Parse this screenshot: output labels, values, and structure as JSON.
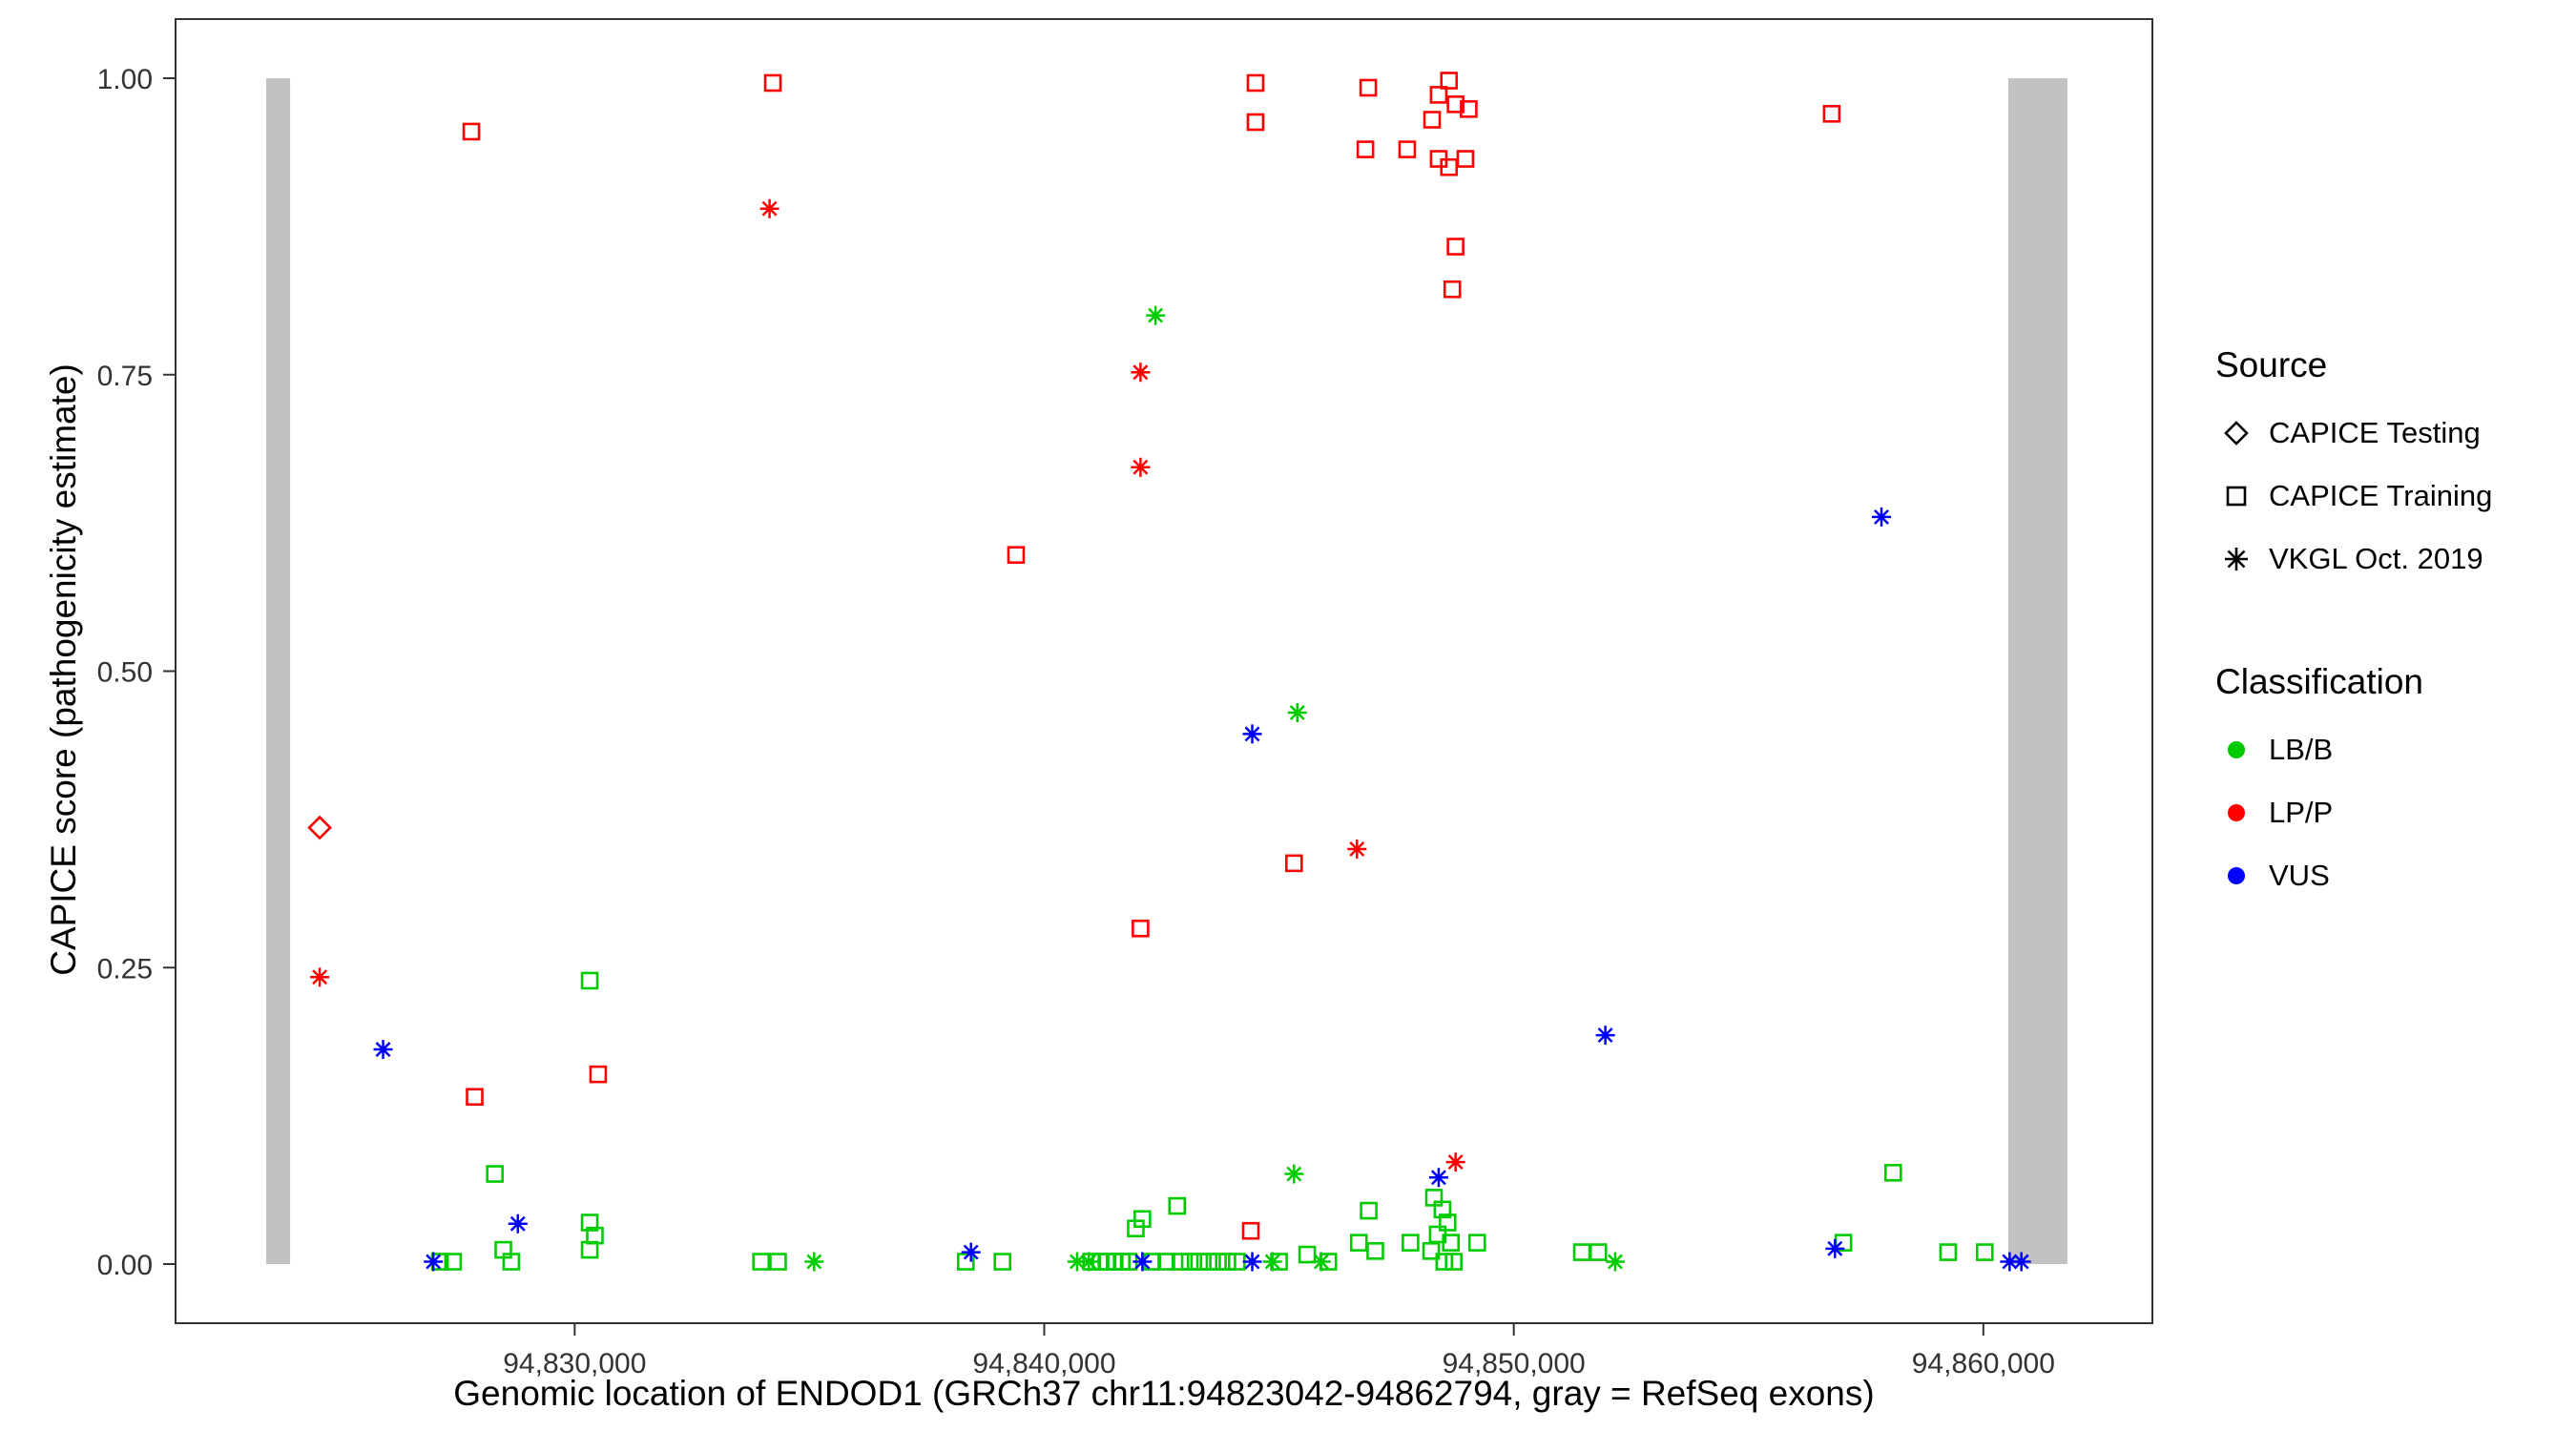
{
  "chart_data": {
    "type": "scatter",
    "title": "",
    "xlabel": "Genomic location of ENDOD1 (GRCh37 chr11:94823042-94862794, gray = RefSeq exons)",
    "ylabel": "CAPICE score (pathogenicity estimate)",
    "xlim": [
      94821500,
      94863600
    ],
    "ylim": [
      0,
      1
    ],
    "grid": false,
    "x_ticks": [
      {
        "value": 94830000,
        "label": "94,830,000"
      },
      {
        "value": 94840000,
        "label": "94,840,000"
      },
      {
        "value": 94850000,
        "label": "94,850,000"
      },
      {
        "value": 94860000,
        "label": "94,860,000"
      }
    ],
    "y_ticks": [
      {
        "value": 0.0,
        "label": "0.00"
      },
      {
        "value": 0.25,
        "label": "0.25"
      },
      {
        "value": 0.5,
        "label": "0.50"
      },
      {
        "value": 0.75,
        "label": "0.75"
      },
      {
        "value": 1.0,
        "label": "1.00"
      }
    ],
    "exon_color": "#c2c2c2",
    "exons": [
      {
        "start": 94823430,
        "end": 94823940
      },
      {
        "start": 94860530,
        "end": 94861790
      }
    ],
    "colors": {
      "LB/B": "#00cc00",
      "LP/P": "#ff0000",
      "VUS": "#0000ff"
    },
    "points_format": [
      "x",
      "y",
      "source",
      "cls"
    ],
    "points": [
      [
        94827800,
        0.955,
        "training",
        "LP/P"
      ],
      [
        94834220,
        0.996,
        "training",
        "LP/P"
      ],
      [
        94844500,
        0.996,
        "training",
        "LP/P"
      ],
      [
        94844500,
        0.963,
        "training",
        "LP/P"
      ],
      [
        94846900,
        0.992,
        "training",
        "LP/P"
      ],
      [
        94846840,
        0.94,
        "training",
        "LP/P"
      ],
      [
        94847730,
        0.94,
        "training",
        "LP/P"
      ],
      [
        94848260,
        0.965,
        "training",
        "LP/P"
      ],
      [
        94848400,
        0.986,
        "training",
        "LP/P"
      ],
      [
        94848620,
        0.998,
        "training",
        "LP/P"
      ],
      [
        94848760,
        0.978,
        "training",
        "LP/P"
      ],
      [
        94848400,
        0.932,
        "training",
        "LP/P"
      ],
      [
        94848620,
        0.925,
        "training",
        "LP/P"
      ],
      [
        94849040,
        0.974,
        "training",
        "LP/P"
      ],
      [
        94848970,
        0.932,
        "training",
        "LP/P"
      ],
      [
        94848760,
        0.858,
        "training",
        "LP/P"
      ],
      [
        94848690,
        0.822,
        "training",
        "LP/P"
      ],
      [
        94856770,
        0.97,
        "training",
        "LP/P"
      ],
      [
        94839400,
        0.598,
        "training",
        "LP/P"
      ],
      [
        94842050,
        0.283,
        "training",
        "LP/P"
      ],
      [
        94845320,
        0.338,
        "training",
        "LP/P"
      ],
      [
        94827870,
        0.141,
        "training",
        "LP/P"
      ],
      [
        94830500,
        0.16,
        "training",
        "LP/P"
      ],
      [
        94844400,
        0.028,
        "training",
        "LP/P"
      ],
      [
        94834150,
        0.89,
        "vkgl",
        "LP/P"
      ],
      [
        94842050,
        0.752,
        "vkgl",
        "LP/P"
      ],
      [
        94842050,
        0.672,
        "vkgl",
        "LP/P"
      ],
      [
        94846660,
        0.35,
        "vkgl",
        "LP/P"
      ],
      [
        94848760,
        0.086,
        "vkgl",
        "LP/P"
      ],
      [
        94824570,
        0.242,
        "vkgl",
        "LP/P"
      ],
      [
        94824570,
        0.368,
        "testing",
        "LP/P"
      ],
      [
        94842370,
        0.8,
        "vkgl",
        "LB/B"
      ],
      [
        94845390,
        0.465,
        "vkgl",
        "LB/B"
      ],
      [
        94845320,
        0.076,
        "vkgl",
        "LB/B"
      ],
      [
        94835100,
        0.002,
        "vkgl",
        "LB/B"
      ],
      [
        94840700,
        0.002,
        "vkgl",
        "LB/B"
      ],
      [
        94840950,
        0.002,
        "vkgl",
        "LB/B"
      ],
      [
        94844860,
        0.002,
        "vkgl",
        "LB/B"
      ],
      [
        94845900,
        0.002,
        "vkgl",
        "LB/B"
      ],
      [
        94852160,
        0.002,
        "vkgl",
        "LB/B"
      ],
      [
        94828300,
        0.076,
        "training",
        "LB/B"
      ],
      [
        94830320,
        0.239,
        "training",
        "LB/B"
      ],
      [
        94830320,
        0.035,
        "training",
        "LB/B"
      ],
      [
        94830430,
        0.024,
        "training",
        "LB/B"
      ],
      [
        94830320,
        0.012,
        "training",
        "LB/B"
      ],
      [
        94828480,
        0.012,
        "training",
        "LB/B"
      ],
      [
        94827130,
        0.002,
        "training",
        "LB/B"
      ],
      [
        94827410,
        0.002,
        "training",
        "LB/B"
      ],
      [
        94828650,
        0.002,
        "training",
        "LB/B"
      ],
      [
        94833970,
        0.002,
        "training",
        "LB/B"
      ],
      [
        94834330,
        0.002,
        "training",
        "LB/B"
      ],
      [
        94838330,
        0.002,
        "training",
        "LB/B"
      ],
      [
        94839110,
        0.002,
        "training",
        "LB/B"
      ],
      [
        94841000,
        0.002,
        "training",
        "LB/B"
      ],
      [
        94841200,
        0.002,
        "training",
        "LB/B"
      ],
      [
        94841350,
        0.002,
        "training",
        "LB/B"
      ],
      [
        94841500,
        0.002,
        "training",
        "LB/B"
      ],
      [
        94841650,
        0.002,
        "training",
        "LB/B"
      ],
      [
        94841800,
        0.002,
        "training",
        "LB/B"
      ],
      [
        94842090,
        0.038,
        "training",
        "LB/B"
      ],
      [
        94841950,
        0.03,
        "training",
        "LB/B"
      ],
      [
        94842830,
        0.049,
        "training",
        "LB/B"
      ],
      [
        94842300,
        0.002,
        "training",
        "LB/B"
      ],
      [
        94842600,
        0.002,
        "training",
        "LB/B"
      ],
      [
        94842900,
        0.002,
        "training",
        "LB/B"
      ],
      [
        94843100,
        0.002,
        "training",
        "LB/B"
      ],
      [
        94843300,
        0.002,
        "training",
        "LB/B"
      ],
      [
        94843500,
        0.002,
        "training",
        "LB/B"
      ],
      [
        94843700,
        0.002,
        "training",
        "LB/B"
      ],
      [
        94843900,
        0.002,
        "training",
        "LB/B"
      ],
      [
        94844100,
        0.002,
        "training",
        "LB/B"
      ],
      [
        94845000,
        0.002,
        "training",
        "LB/B"
      ],
      [
        94845600,
        0.008,
        "training",
        "LB/B"
      ],
      [
        94846050,
        0.002,
        "training",
        "LB/B"
      ],
      [
        94846910,
        0.045,
        "training",
        "LB/B"
      ],
      [
        94846700,
        0.018,
        "training",
        "LB/B"
      ],
      [
        94847050,
        0.011,
        "training",
        "LB/B"
      ],
      [
        94847800,
        0.018,
        "training",
        "LB/B"
      ],
      [
        94848300,
        0.056,
        "training",
        "LB/B"
      ],
      [
        94848480,
        0.046,
        "training",
        "LB/B"
      ],
      [
        94848590,
        0.035,
        "training",
        "LB/B"
      ],
      [
        94848380,
        0.025,
        "training",
        "LB/B"
      ],
      [
        94848660,
        0.018,
        "training",
        "LB/B"
      ],
      [
        94848240,
        0.011,
        "training",
        "LB/B"
      ],
      [
        94848520,
        0.002,
        "training",
        "LB/B"
      ],
      [
        94848720,
        0.002,
        "training",
        "LB/B"
      ],
      [
        94849220,
        0.018,
        "training",
        "LB/B"
      ],
      [
        94851450,
        0.01,
        "training",
        "LB/B"
      ],
      [
        94851800,
        0.01,
        "training",
        "LB/B"
      ],
      [
        94857020,
        0.018,
        "training",
        "LB/B"
      ],
      [
        94858080,
        0.077,
        "training",
        "LB/B"
      ],
      [
        94859250,
        0.01,
        "training",
        "LB/B"
      ],
      [
        94860030,
        0.01,
        "training",
        "LB/B"
      ],
      [
        94857830,
        0.63,
        "vkgl",
        "VUS"
      ],
      [
        94844430,
        0.447,
        "vkgl",
        "VUS"
      ],
      [
        94851950,
        0.193,
        "vkgl",
        "VUS"
      ],
      [
        94848400,
        0.073,
        "vkgl",
        "VUS"
      ],
      [
        94825920,
        0.181,
        "vkgl",
        "VUS"
      ],
      [
        94828790,
        0.034,
        "vkgl",
        "VUS"
      ],
      [
        94826990,
        0.002,
        "vkgl",
        "VUS"
      ],
      [
        94838440,
        0.01,
        "vkgl",
        "VUS"
      ],
      [
        94842090,
        0.002,
        "vkgl",
        "VUS"
      ],
      [
        94844430,
        0.002,
        "vkgl",
        "VUS"
      ],
      [
        94856840,
        0.013,
        "vkgl",
        "VUS"
      ],
      [
        94860560,
        0.002,
        "vkgl",
        "VUS"
      ],
      [
        94860810,
        0.002,
        "vkgl",
        "VUS"
      ]
    ]
  },
  "legend": {
    "source_title": "Source",
    "source_items": [
      {
        "label": "CAPICE Testing",
        "shape": "diamond"
      },
      {
        "label": "CAPICE Training",
        "shape": "square"
      },
      {
        "label": "VKGL Oct. 2019",
        "shape": "asterisk"
      }
    ],
    "class_title": "Classification",
    "class_items": [
      {
        "label": "LB/B",
        "color": "#00cc00"
      },
      {
        "label": "LP/P",
        "color": "#ff0000"
      },
      {
        "label": "VUS",
        "color": "#0000ff"
      }
    ]
  }
}
